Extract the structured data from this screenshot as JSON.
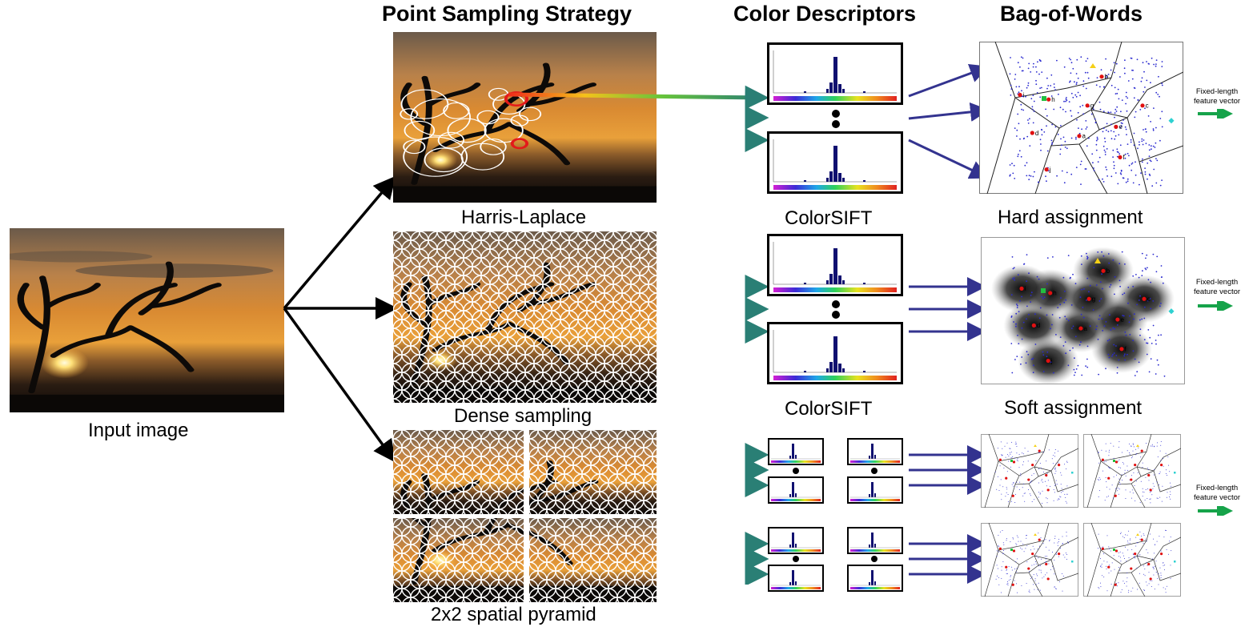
{
  "titles": {
    "sampling": "Point Sampling Strategy",
    "descriptors": "Color Descriptors",
    "bow": "Bag-of-Words"
  },
  "captions": {
    "input": "Input image",
    "harris": "Harris-Laplace",
    "dense": "Dense sampling",
    "pyramid": "2x2 spatial pyramid",
    "colorsift_1": "ColorSIFT",
    "colorsift_2": "ColorSIFT",
    "hard": "Hard assignment",
    "soft": "Soft assignment"
  },
  "feature_vector": {
    "line1": "Fixed-length",
    "line2": "feature vector"
  },
  "codeword_labels": [
    "a",
    "b",
    "c",
    "d",
    "e",
    "f",
    "g",
    "h",
    "i",
    "j"
  ],
  "colors": {
    "arrow_black": "#000000",
    "arrow_blue": "#33338f",
    "arrow_green": "#16a34a",
    "histogram_bar": "#101070",
    "voronoi_point": "#2a2acf",
    "center_red": "#e01010"
  }
}
